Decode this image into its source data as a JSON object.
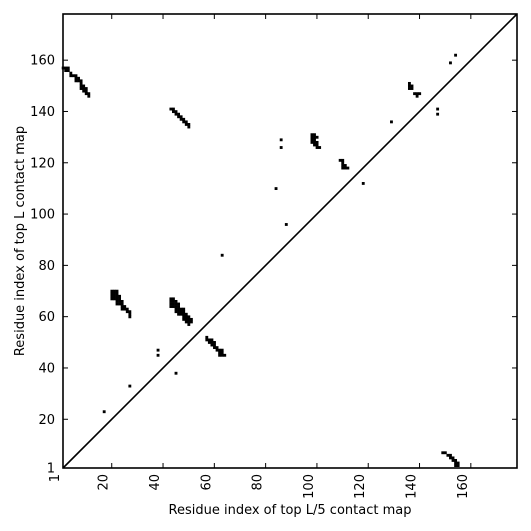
{
  "chart_data": {
    "type": "scatter",
    "title": "",
    "xlabel": "Residue index of top L/5 contact map",
    "ylabel": "Residue index of top L contact map",
    "xlim": [
      1,
      178
    ],
    "ylim": [
      1,
      178
    ],
    "xticks": [
      1,
      20,
      40,
      60,
      80,
      100,
      120,
      140,
      160
    ],
    "xtick_labels": [
      "1",
      "20",
      "40",
      "60",
      "80",
      "100",
      "120",
      "140",
      "160"
    ],
    "yticks": [
      1,
      20,
      40,
      60,
      80,
      100,
      120,
      140,
      160
    ],
    "ytick_labels": [
      "1",
      "20",
      "40",
      "60",
      "80",
      "100",
      "120",
      "140",
      "160"
    ],
    "diagonal": true,
    "grid": false,
    "legend": "none",
    "marker": "square",
    "color": "#000000",
    "series": [
      {
        "points": [
          [
            1,
            157
          ],
          [
            2,
            157
          ],
          [
            3,
            157
          ],
          [
            2,
            156
          ],
          [
            3,
            156
          ],
          [
            4,
            155
          ],
          [
            4,
            154
          ],
          [
            5,
            154
          ],
          [
            6,
            154
          ],
          [
            6,
            153
          ],
          [
            7,
            153
          ],
          [
            6,
            152
          ],
          [
            7,
            152
          ],
          [
            8,
            152
          ],
          [
            8,
            151
          ],
          [
            8,
            150
          ],
          [
            9,
            150
          ],
          [
            8,
            149
          ],
          [
            9,
            149
          ],
          [
            10,
            149
          ],
          [
            9,
            148
          ],
          [
            10,
            148
          ],
          [
            10,
            147
          ],
          [
            11,
            147
          ],
          [
            11,
            146
          ],
          [
            43,
            141
          ],
          [
            44,
            141
          ],
          [
            44,
            140
          ],
          [
            45,
            140
          ],
          [
            45,
            139
          ],
          [
            46,
            139
          ],
          [
            46,
            138
          ],
          [
            47,
            138
          ],
          [
            47,
            137
          ],
          [
            48,
            137
          ],
          [
            48,
            136
          ],
          [
            49,
            136
          ],
          [
            49,
            135
          ],
          [
            50,
            135
          ],
          [
            50,
            134
          ],
          [
            136,
            151
          ],
          [
            136,
            150
          ],
          [
            137,
            150
          ],
          [
            136,
            149
          ],
          [
            137,
            149
          ],
          [
            138,
            147
          ],
          [
            139,
            147
          ],
          [
            140,
            147
          ],
          [
            139,
            146
          ],
          [
            147,
            141
          ],
          [
            147,
            139
          ],
          [
            152,
            159
          ],
          [
            154,
            162
          ],
          [
            129,
            136
          ],
          [
            86,
            129
          ],
          [
            86,
            126
          ],
          [
            84,
            110
          ],
          [
            88,
            96
          ],
          [
            63,
            84
          ],
          [
            118,
            112
          ],
          [
            45,
            38
          ],
          [
            27,
            33
          ],
          [
            38,
            47
          ],
          [
            38,
            45
          ],
          [
            17,
            23
          ],
          [
            98,
            131
          ],
          [
            99,
            131
          ],
          [
            98,
            130
          ],
          [
            99,
            130
          ],
          [
            100,
            130
          ],
          [
            98,
            129
          ],
          [
            99,
            129
          ],
          [
            98,
            128
          ],
          [
            99,
            128
          ],
          [
            100,
            128
          ],
          [
            99,
            127
          ],
          [
            100,
            127
          ],
          [
            100,
            126
          ],
          [
            101,
            126
          ],
          [
            109,
            121
          ],
          [
            110,
            121
          ],
          [
            110,
            120
          ],
          [
            110,
            119
          ],
          [
            111,
            119
          ],
          [
            110,
            118
          ],
          [
            111,
            118
          ],
          [
            112,
            118
          ],
          [
            20,
            70
          ],
          [
            21,
            70
          ],
          [
            22,
            70
          ],
          [
            20,
            69
          ],
          [
            21,
            69
          ],
          [
            22,
            69
          ],
          [
            20,
            68
          ],
          [
            21,
            68
          ],
          [
            22,
            68
          ],
          [
            23,
            68
          ],
          [
            20,
            67
          ],
          [
            21,
            67
          ],
          [
            22,
            67
          ],
          [
            23,
            67
          ],
          [
            22,
            66
          ],
          [
            23,
            66
          ],
          [
            24,
            66
          ],
          [
            22,
            65
          ],
          [
            23,
            65
          ],
          [
            24,
            65
          ],
          [
            24,
            64
          ],
          [
            25,
            64
          ],
          [
            24,
            63
          ],
          [
            25,
            63
          ],
          [
            26,
            63
          ],
          [
            26,
            62
          ],
          [
            27,
            62
          ],
          [
            27,
            61
          ],
          [
            27,
            60
          ],
          [
            43,
            67
          ],
          [
            44,
            67
          ],
          [
            43,
            66
          ],
          [
            44,
            66
          ],
          [
            45,
            66
          ],
          [
            43,
            65
          ],
          [
            44,
            65
          ],
          [
            45,
            65
          ],
          [
            46,
            65
          ],
          [
            43,
            64
          ],
          [
            44,
            64
          ],
          [
            45,
            64
          ],
          [
            46,
            64
          ],
          [
            45,
            63
          ],
          [
            46,
            63
          ],
          [
            47,
            63
          ],
          [
            48,
            63
          ],
          [
            45,
            62
          ],
          [
            46,
            62
          ],
          [
            47,
            62
          ],
          [
            48,
            62
          ],
          [
            46,
            61
          ],
          [
            47,
            61
          ],
          [
            48,
            61
          ],
          [
            49,
            61
          ],
          [
            48,
            60
          ],
          [
            49,
            60
          ],
          [
            50,
            60
          ],
          [
            48,
            59
          ],
          [
            49,
            59
          ],
          [
            50,
            59
          ],
          [
            51,
            59
          ],
          [
            49,
            58
          ],
          [
            50,
            58
          ],
          [
            51,
            58
          ],
          [
            50,
            57
          ],
          [
            57,
            52
          ],
          [
            57,
            51
          ],
          [
            58,
            51
          ],
          [
            59,
            51
          ],
          [
            58,
            50
          ],
          [
            59,
            50
          ],
          [
            60,
            50
          ],
          [
            59,
            49
          ],
          [
            60,
            49
          ],
          [
            60,
            48
          ],
          [
            61,
            48
          ],
          [
            61,
            47
          ],
          [
            62,
            47
          ],
          [
            63,
            47
          ],
          [
            62,
            46
          ],
          [
            63,
            46
          ],
          [
            62,
            45
          ],
          [
            63,
            45
          ],
          [
            64,
            45
          ],
          [
            149,
            7
          ],
          [
            150,
            7
          ],
          [
            151,
            6
          ],
          [
            152,
            6
          ],
          [
            152,
            5
          ],
          [
            153,
            5
          ],
          [
            153,
            4
          ],
          [
            154,
            4
          ],
          [
            154,
            3
          ],
          [
            155,
            3
          ],
          [
            154,
            2
          ],
          [
            155,
            2
          ]
        ]
      }
    ]
  }
}
